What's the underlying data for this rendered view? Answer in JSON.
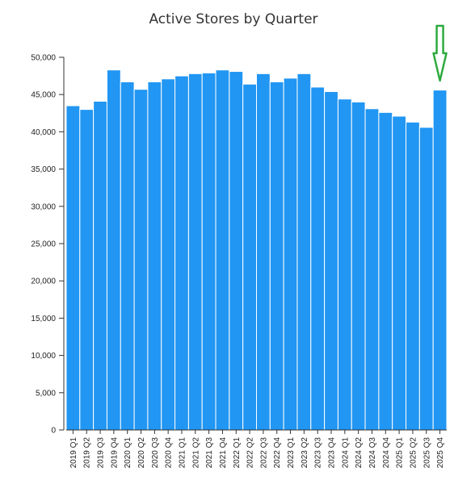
{
  "chart_data": {
    "type": "bar",
    "title": "Active Stores by Quarter",
    "xlabel": "",
    "ylabel": "",
    "categories": [
      "2019 Q1",
      "2019 Q2",
      "2019 Q3",
      "2019 Q4",
      "2020 Q1",
      "2020 Q2",
      "2020 Q3",
      "2020 Q4",
      "2021 Q1",
      "2021 Q2",
      "2021 Q3",
      "2021 Q4",
      "2022 Q1",
      "2022 Q2",
      "2022 Q3",
      "2022 Q4",
      "2023 Q1",
      "2023 Q2",
      "2023 Q3",
      "2023 Q4",
      "2024 Q1",
      "2024 Q2",
      "2024 Q3",
      "2024 Q4",
      "2025 Q1",
      "2025 Q2",
      "2025 Q3",
      "2025 Q4"
    ],
    "values": [
      43500,
      43000,
      44100,
      48300,
      46700,
      45700,
      46700,
      47100,
      47500,
      47800,
      47900,
      48300,
      48100,
      46400,
      47800,
      46700,
      47200,
      47800,
      46000,
      45400,
      44400,
      44000,
      43100,
      42600,
      42100,
      41300,
      40600,
      45600
    ],
    "ylim": [
      0,
      50000
    ],
    "yticks": [
      0,
      5000,
      10000,
      15000,
      20000,
      25000,
      30000,
      35000,
      40000,
      45000,
      50000
    ],
    "ytick_labels": [
      "0",
      "5,000",
      "10,000",
      "15,000",
      "20,000",
      "25,000",
      "30,000",
      "35,000",
      "40,000",
      "45,000",
      "50,000"
    ],
    "grid": false,
    "bar_color": "#2196f3",
    "annotation": {
      "type": "arrow",
      "target": "2025 Q4",
      "color": "#2eaa3f"
    }
  }
}
